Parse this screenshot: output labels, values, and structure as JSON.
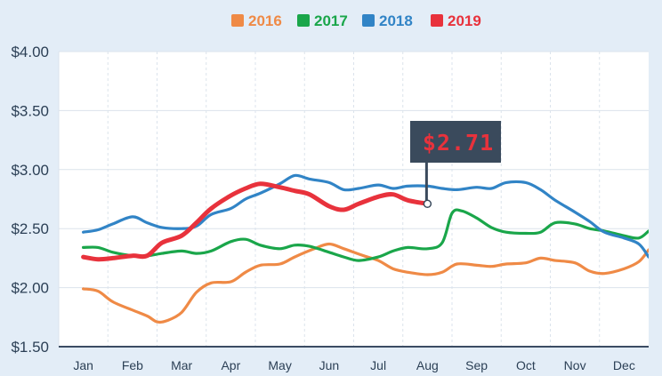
{
  "legend": [
    {
      "label": "2016",
      "color": "#ef8a46"
    },
    {
      "label": "2017",
      "color": "#1aa64a"
    },
    {
      "label": "2018",
      "color": "#3184c6"
    },
    {
      "label": "2019",
      "color": "#e8323c"
    }
  ],
  "flag": {
    "label": "$2.71",
    "value": 2.71,
    "month_index": 7.0
  },
  "chart_data": {
    "type": "line",
    "title": "",
    "xlabel": "",
    "ylabel": "",
    "x_ticks": [
      "Jan",
      "Feb",
      "Mar",
      "Apr",
      "May",
      "Jun",
      "Jul",
      "Aug",
      "Sep",
      "Oct",
      "Nov",
      "Dec"
    ],
    "y_ticks": [
      "$1.50",
      "$2.00",
      "$2.50",
      "$3.00",
      "$3.50",
      "$4.00"
    ],
    "ylim": [
      1.5,
      4.0
    ],
    "grid": true,
    "legend_position": "top",
    "series": [
      {
        "name": "2016",
        "color": "#ef8a46",
        "x": [
          0.0,
          0.3,
          0.6,
          1.0,
          1.3,
          1.5,
          1.7,
          2.0,
          2.3,
          2.6,
          3.0,
          3.3,
          3.6,
          4.0,
          4.3,
          4.7,
          5.0,
          5.3,
          5.7,
          6.0,
          6.3,
          6.6,
          7.0,
          7.3,
          7.6,
          8.0,
          8.3,
          8.6,
          9.0,
          9.3,
          9.6,
          10.0,
          10.3,
          10.6,
          11.0,
          11.3,
          11.5
        ],
        "y": [
          1.99,
          1.97,
          1.88,
          1.81,
          1.76,
          1.71,
          1.72,
          1.79,
          1.96,
          2.04,
          2.05,
          2.13,
          2.19,
          2.2,
          2.26,
          2.33,
          2.37,
          2.33,
          2.27,
          2.23,
          2.16,
          2.13,
          2.11,
          2.13,
          2.2,
          2.19,
          2.18,
          2.2,
          2.21,
          2.25,
          2.23,
          2.21,
          2.14,
          2.12,
          2.16,
          2.22,
          2.32
        ]
      },
      {
        "name": "2017",
        "color": "#1aa64a",
        "x": [
          0.0,
          0.3,
          0.6,
          1.0,
          1.3,
          1.6,
          2.0,
          2.3,
          2.6,
          3.0,
          3.3,
          3.6,
          4.0,
          4.3,
          4.6,
          5.0,
          5.3,
          5.6,
          6.0,
          6.3,
          6.6,
          7.0,
          7.3,
          7.5,
          7.7,
          8.0,
          8.3,
          8.6,
          9.0,
          9.3,
          9.6,
          10.0,
          10.3,
          10.6,
          11.0,
          11.3,
          11.5
        ],
        "y": [
          2.34,
          2.34,
          2.3,
          2.27,
          2.27,
          2.29,
          2.31,
          2.29,
          2.31,
          2.39,
          2.41,
          2.36,
          2.33,
          2.36,
          2.35,
          2.3,
          2.26,
          2.23,
          2.26,
          2.31,
          2.34,
          2.33,
          2.38,
          2.63,
          2.65,
          2.59,
          2.51,
          2.47,
          2.46,
          2.47,
          2.55,
          2.54,
          2.5,
          2.48,
          2.44,
          2.42,
          2.48
        ]
      },
      {
        "name": "2018",
        "color": "#3184c6",
        "x": [
          0.0,
          0.3,
          0.6,
          1.0,
          1.3,
          1.6,
          2.0,
          2.3,
          2.6,
          3.0,
          3.3,
          3.6,
          4.0,
          4.3,
          4.6,
          5.0,
          5.3,
          5.6,
          6.0,
          6.3,
          6.6,
          7.0,
          7.3,
          7.6,
          8.0,
          8.3,
          8.6,
          9.0,
          9.3,
          9.6,
          10.0,
          10.3,
          10.6,
          11.0,
          11.3,
          11.5
        ],
        "y": [
          2.47,
          2.49,
          2.54,
          2.6,
          2.55,
          2.51,
          2.5,
          2.52,
          2.62,
          2.67,
          2.75,
          2.8,
          2.88,
          2.95,
          2.92,
          2.89,
          2.83,
          2.84,
          2.87,
          2.84,
          2.86,
          2.86,
          2.84,
          2.83,
          2.85,
          2.84,
          2.89,
          2.89,
          2.83,
          2.74,
          2.64,
          2.56,
          2.47,
          2.42,
          2.37,
          2.26
        ]
      },
      {
        "name": "2019",
        "color": "#e8323c",
        "x": [
          0.0,
          0.3,
          0.6,
          1.0,
          1.3,
          1.6,
          2.0,
          2.3,
          2.6,
          3.0,
          3.3,
          3.6,
          4.0,
          4.3,
          4.6,
          5.0,
          5.3,
          5.6,
          6.0,
          6.3,
          6.6,
          7.0
        ],
        "y": [
          2.26,
          2.24,
          2.25,
          2.27,
          2.27,
          2.38,
          2.44,
          2.55,
          2.67,
          2.78,
          2.84,
          2.88,
          2.85,
          2.82,
          2.79,
          2.69,
          2.66,
          2.71,
          2.77,
          2.79,
          2.74,
          2.71
        ]
      }
    ]
  }
}
